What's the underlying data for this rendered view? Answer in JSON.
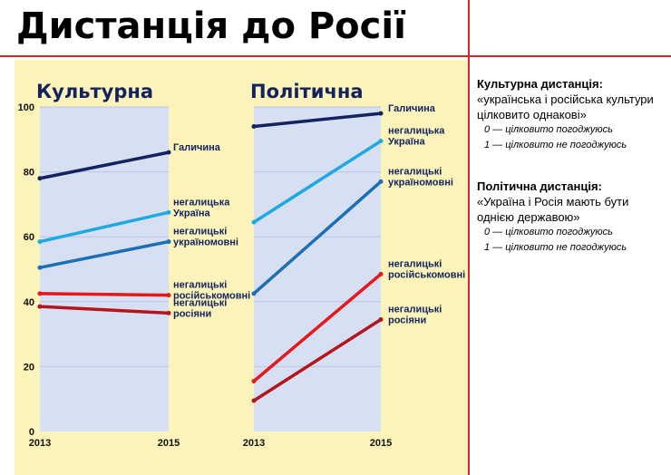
{
  "title": "Дистанція до Росії",
  "colors": {
    "panel": "#fbf3b9",
    "plot": "#d6e0f2",
    "accent": "#d9262c"
  },
  "chart_data": {
    "type": "line",
    "y_ticks": [
      0,
      20,
      40,
      60,
      80,
      100
    ],
    "ylim": [
      0,
      100
    ],
    "x_ticks": [
      "2013",
      "2015"
    ],
    "panels": [
      {
        "title": "Культурна",
        "series": [
          {
            "name": "Галичина",
            "values": [
              78,
              86
            ],
            "color": "#13235f"
          },
          {
            "name": "негалицька Україна",
            "values": [
              58.5,
              67.5
            ],
            "color": "#1fa9e1"
          },
          {
            "name": "негалицькі україномовні",
            "values": [
              50.5,
              58.5
            ],
            "color": "#1d6fb5"
          },
          {
            "name": "негалицькі російськомовні",
            "values": [
              42.5,
              42
            ],
            "color": "#e3191f"
          },
          {
            "name": "негалицькі росіяни",
            "values": [
              38.5,
              36.5
            ],
            "color": "#b4151d"
          }
        ]
      },
      {
        "title": "Політична",
        "series": [
          {
            "name": "Галичина",
            "values": [
              94,
              98
            ],
            "color": "#13235f"
          },
          {
            "name": "негалицька Україна",
            "values": [
              64.5,
              89.5
            ],
            "color": "#1fa9e1"
          },
          {
            "name": "негалицькі україномовні",
            "values": [
              42.5,
              77
            ],
            "color": "#1d6fb5"
          },
          {
            "name": "негалицькі російськомовні",
            "values": [
              15.5,
              48.5
            ],
            "color": "#e3191f"
          },
          {
            "name": "негалицькі росіяни",
            "values": [
              9.5,
              34.5
            ],
            "color": "#b4151d"
          }
        ]
      }
    ]
  },
  "notes": [
    {
      "heading": "Культурна дистанція:",
      "question": "«українська і російська культури цілковито однакові»",
      "scale": [
        "0 — цілковито погоджуюсь",
        "1 — цілковито не погоджуюсь"
      ]
    },
    {
      "heading": "Політична дистанція:",
      "question": "«Україна і Росія мають бути однією державою»",
      "scale": [
        "0 — цілковито погоджуюсь",
        "1 — цілковито не погоджуюсь"
      ]
    }
  ]
}
